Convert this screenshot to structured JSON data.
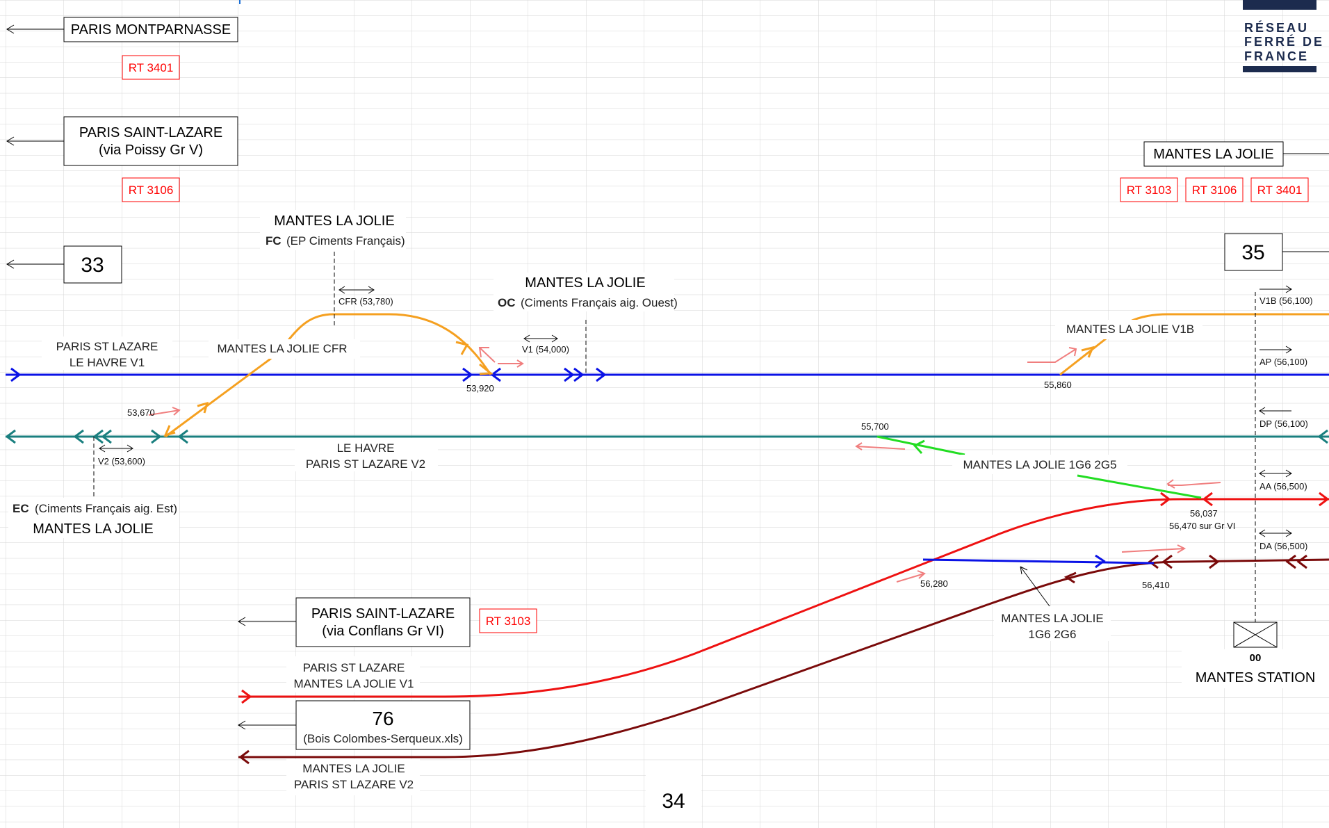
{
  "brand": {
    "lines": [
      "RÉSEAU",
      "FERRÉ DE",
      "FRANCE"
    ],
    "color": "#1c2b4e"
  },
  "destinations": {
    "paris_montparnasse": "PARIS MONTPARNASSE",
    "paris_st_lazare_poissy_1": "PARIS SAINT-LAZARE",
    "paris_st_lazare_poissy_2": "(via Poissy Gr V)",
    "sheet_left": "33",
    "sheet_right": "35",
    "sheet_bottom": "34",
    "mantes_right": "MANTES LA JOLIE",
    "paris_st_lazare_conflans_1": "PARIS SAINT-LAZARE",
    "paris_st_lazare_conflans_2": "(via Conflans Gr VI)",
    "sheet_76": "76",
    "sheet_76_file": "(Bois Colombes-Serqueux.xls)"
  },
  "route_tags": {
    "rt_montparnasse": "RT 3401",
    "rt_poissy": "RT 3106",
    "rt_conflans": "RT 3103",
    "rt_right_1": "RT 3103",
    "rt_right_2": "RT 3106",
    "rt_right_3": "RT 3401"
  },
  "stations": {
    "fc_title": "MANTES LA JOLIE",
    "fc_code": "FC",
    "fc_desc": "(EP Ciments Français)",
    "oc_title": "MANTES LA JOLIE",
    "oc_code": "OC",
    "oc_desc": "(Ciments Français aig. Ouest)",
    "ec_code": "EC",
    "ec_desc": "(Ciments Français aig. Est)",
    "ec_title": "MANTES LA JOLIE",
    "station_code": "00",
    "station_name": "MANTES STATION"
  },
  "track_labels": {
    "v1_l1": "PARIS ST LAZARE",
    "v1_l2": "LE HAVRE  V1",
    "cfr": "MANTES LA JOLIE  CFR",
    "v2_l1": "LE HAVRE",
    "v2_l2": "PARIS ST LAZARE  V2",
    "v1b": "MANTES LA JOLIE  V1B",
    "g1g6_2g5": "MANTES LA JOLIE  1G6  2G5",
    "g1g6_2g6_l1": "MANTES LA JOLIE",
    "g1g6_2g6_l2": "1G6  2G6",
    "conf_v1_l1": "PARIS ST LAZARE",
    "conf_v1_l2": "MANTES LA JOLIE  V1",
    "conf_v2_l1": "MANTES LA JOLIE",
    "conf_v2_l2": "PARIS ST LAZARE  V2"
  },
  "signals": {
    "cfr": "CFR  (53,780)",
    "v1": "V1  (54,000)",
    "v2": "V2  (53,600)",
    "v1b": "V1B  (56,100)",
    "ap": "AP  (56,100)",
    "dp": "DP  (56,100)",
    "aa": "AA  (56,500)",
    "da": "DA  (56,500)"
  },
  "kilometre_points": {
    "k53920": "53,920",
    "k53670": "53,670",
    "k55860": "55,860",
    "k55700": "55,700",
    "k56037": "56,037",
    "k56470": "56,470 sur Gr VI",
    "k56280": "56,280",
    "k56410": "56,410"
  },
  "colors": {
    "v1": "#0a12e6",
    "v2": "#1a7f7f",
    "branch": "#f5a020",
    "gr6_v1": "#ee1111",
    "gr6_v2": "#7a0a0a",
    "link": "#22dd22",
    "hint": "#f07e7e",
    "tag": "#ff0000",
    "grid": "#d6d6d6"
  }
}
